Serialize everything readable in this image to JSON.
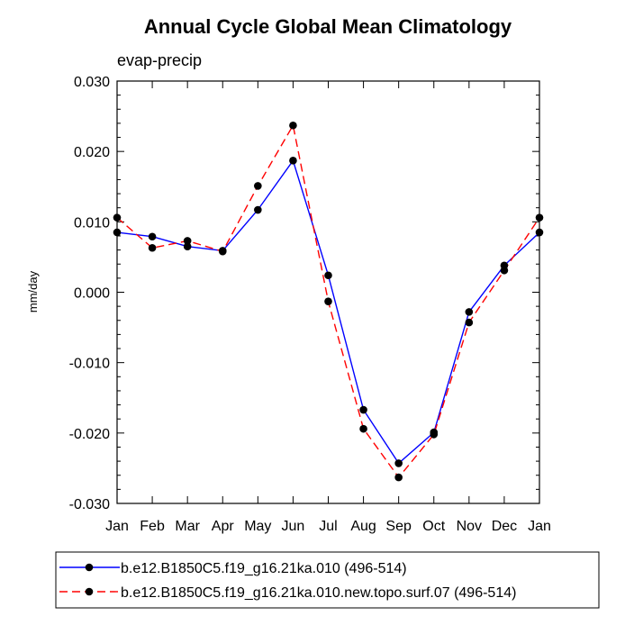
{
  "chart_data": {
    "type": "line",
    "title": "Annual Cycle Global Mean Climatology",
    "subtitle": "evap-precip",
    "ylabel": "mm/day",
    "xlabel": "",
    "categories": [
      "Jan",
      "Feb",
      "Mar",
      "Apr",
      "May",
      "Jun",
      "Jul",
      "Aug",
      "Sep",
      "Oct",
      "Nov",
      "Dec",
      "Jan"
    ],
    "ylim": [
      -0.03,
      0.03
    ],
    "yticks": [
      0.03,
      0.02,
      0.01,
      0.0,
      -0.01,
      -0.02,
      -0.03
    ],
    "ytick_labels": [
      "0.030",
      "0.020",
      "0.010",
      "0.000",
      "-0.010",
      "-0.020",
      "-0.030"
    ],
    "grid": false,
    "legend_position": "bottom",
    "series": [
      {
        "name": "b.e12.B1850C5.f19_g16.21ka.010 (496-514)",
        "color": "#0000ff",
        "dash": "solid",
        "values": [
          0.0085,
          0.0079,
          0.0065,
          0.0059,
          0.0117,
          0.0187,
          0.0024,
          -0.0167,
          -0.0243,
          -0.0199,
          -0.0028,
          0.0038,
          0.0085
        ]
      },
      {
        "name": "b.e12.B1850C5.f19_g16.21ka.010.new.topo.surf.07 (496-514)",
        "color": "#ff0000",
        "dash": "dashed",
        "values": [
          0.0106,
          0.0063,
          0.0073,
          0.0058,
          0.0151,
          0.0237,
          -0.0013,
          -0.0194,
          -0.0263,
          -0.0202,
          -0.0043,
          0.0031,
          0.0106
        ]
      }
    ]
  }
}
